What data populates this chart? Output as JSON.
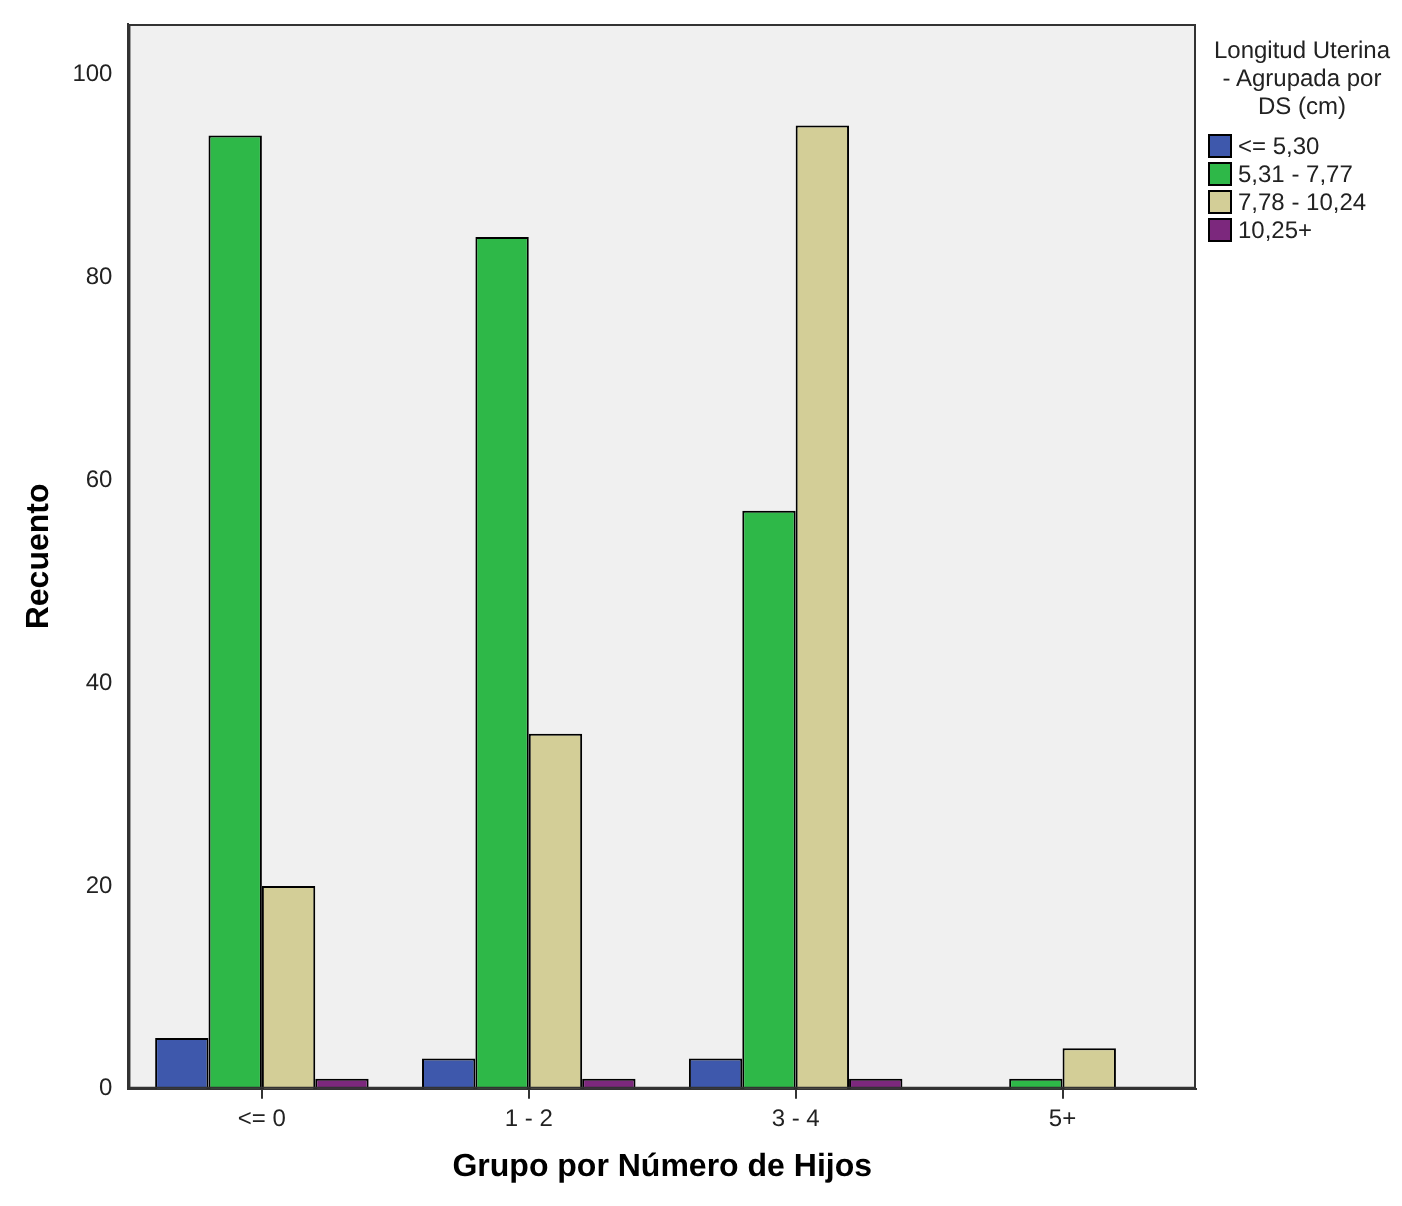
{
  "chart_data": {
    "type": "bar",
    "xlabel": "Grupo por Número de Hijos",
    "ylabel": "Recuento",
    "legend_title": "Longitud Uterina - Agrupada por DS (cm)",
    "categories": [
      "<= 0",
      "1 - 2",
      "3 - 4",
      "5+"
    ],
    "series": [
      {
        "name": "<= 5,30",
        "color": "#3e58ac",
        "values": [
          5,
          3,
          3,
          null
        ]
      },
      {
        "name": "5,31 - 7,77",
        "color": "#2eb848",
        "values": [
          94,
          84,
          57,
          1
        ]
      },
      {
        "name": "7,78 - 10,24",
        "color": "#d3ce97",
        "values": [
          20,
          35,
          95,
          4
        ]
      },
      {
        "name": "10,25+",
        "color": "#7c287d",
        "values": [
          1,
          1,
          1,
          null
        ]
      }
    ],
    "ylim": [
      0,
      105
    ],
    "yticks": [
      0,
      20,
      40,
      60,
      80,
      100
    ],
    "grid": false,
    "legend": "right"
  }
}
